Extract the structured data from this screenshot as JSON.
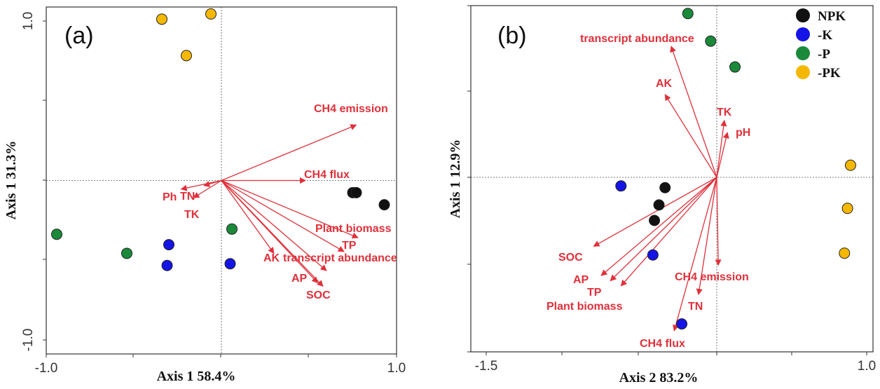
{
  "chart_data": [
    {
      "type": "scatter",
      "panel_label": "(a)",
      "xlabel": "Axis 1 58.4%",
      "ylabel": "Axis 1 31.3%",
      "xlim": [
        -1.0,
        1.0
      ],
      "ylim": [
        -1.0,
        1.0
      ],
      "x_ticks": [
        "-1.0",
        "1.0"
      ],
      "y_ticks": [
        "1.0",
        "-1.0"
      ],
      "grid": false,
      "series": [
        {
          "key": "NPK",
          "color": "#111111",
          "points": [
            [
              0.75,
              -0.07
            ],
            [
              0.77,
              -0.07
            ],
            [
              0.93,
              -0.14
            ]
          ]
        },
        {
          "key": "-K",
          "color": "#1414e6",
          "points": [
            [
              -0.3,
              -0.37
            ],
            [
              -0.31,
              -0.49
            ],
            [
              0.05,
              -0.48
            ]
          ]
        },
        {
          "key": "-P",
          "color": "#1a8a3a",
          "points": [
            [
              -0.94,
              -0.31
            ],
            [
              -0.54,
              -0.42
            ],
            [
              0.06,
              -0.28
            ]
          ]
        },
        {
          "key": "-PK",
          "color": "#f5b800",
          "points": [
            [
              -0.34,
              0.93
            ],
            [
              -0.06,
              0.96
            ],
            [
              -0.2,
              0.72
            ]
          ]
        }
      ],
      "vectors": [
        {
          "label": "CH4 emission",
          "x": 0.77,
          "y": 0.32
        },
        {
          "label": "CH4 flux",
          "x": 0.48,
          "y": 0.0
        },
        {
          "label": "Plant biomass",
          "x": 0.78,
          "y": -0.33
        },
        {
          "label": "TP",
          "x": 0.7,
          "y": -0.41
        },
        {
          "label": "transcript abundance",
          "x": 0.6,
          "y": -0.52
        },
        {
          "label": "AK",
          "x": 0.3,
          "y": -0.42
        },
        {
          "label": "AP",
          "x": 0.55,
          "y": -0.59
        },
        {
          "label": "SOC",
          "x": 0.58,
          "y": -0.61
        },
        {
          "label": "Ph",
          "x": -0.23,
          "y": -0.05
        },
        {
          "label": "TN",
          "x": -0.1,
          "y": -0.03
        },
        {
          "label": "TK",
          "x": -0.16,
          "y": -0.1
        }
      ]
    },
    {
      "type": "scatter",
      "panel_label": "(b)",
      "xlabel": "Axis 2 83.2%",
      "ylabel": "Axis 1 12.9%",
      "xlim": [
        -1.5,
        1.0
      ],
      "ylim": [
        -1.0,
        1.0
      ],
      "x_ticks": [
        "-1.5",
        "1.0"
      ],
      "grid": false,
      "legend": {
        "position": "top-right",
        "entries": [
          "NPK",
          "-K",
          "-P",
          "-PK"
        ]
      },
      "series": [
        {
          "key": "NPK",
          "color": "#111111",
          "points": [
            [
              -0.34,
              -0.06
            ],
            [
              -0.38,
              -0.16
            ],
            [
              -0.41,
              -0.25
            ]
          ]
        },
        {
          "key": "-K",
          "color": "#1414e6",
          "points": [
            [
              -0.63,
              -0.05
            ],
            [
              -0.42,
              -0.45
            ],
            [
              -0.23,
              -0.85
            ]
          ]
        },
        {
          "key": "-P",
          "color": "#1a8a3a",
          "points": [
            [
              -0.19,
              0.95
            ],
            [
              -0.04,
              0.79
            ],
            [
              0.12,
              0.64
            ]
          ]
        },
        {
          "key": "-PK",
          "color": "#f5b800",
          "points": [
            [
              0.88,
              0.07
            ],
            [
              0.86,
              -0.18
            ],
            [
              0.84,
              -0.44
            ]
          ]
        }
      ],
      "vectors": [
        {
          "label": "transcript abundance",
          "x": -0.3,
          "y": 0.76
        },
        {
          "label": "AK",
          "x": -0.34,
          "y": 0.48
        },
        {
          "label": "TK",
          "x": 0.05,
          "y": 0.33
        },
        {
          "label": "pH",
          "x": 0.07,
          "y": 0.26
        },
        {
          "label": "SOC",
          "x": -0.81,
          "y": -0.4
        },
        {
          "label": "AP",
          "x": -0.76,
          "y": -0.57
        },
        {
          "label": "TP",
          "x": -0.7,
          "y": -0.6
        },
        {
          "label": "Plant biomass",
          "x": -0.63,
          "y": -0.63
        },
        {
          "label": "CH4 emission",
          "x": 0.01,
          "y": -0.51
        },
        {
          "label": "TN",
          "x": -0.12,
          "y": -0.68
        },
        {
          "label": "CH4 flux",
          "x": -0.28,
          "y": -0.89
        }
      ]
    }
  ],
  "legend": {
    "entries": [
      {
        "label": "NPK",
        "color": "#111111"
      },
      {
        "label": "-K",
        "color": "#1414e6"
      },
      {
        "label": "-P",
        "color": "#1a8a3a"
      },
      {
        "label": "-PK",
        "color": "#f5b800"
      }
    ]
  },
  "colors": {
    "vector": "#e0303a",
    "axes": "#333333"
  }
}
